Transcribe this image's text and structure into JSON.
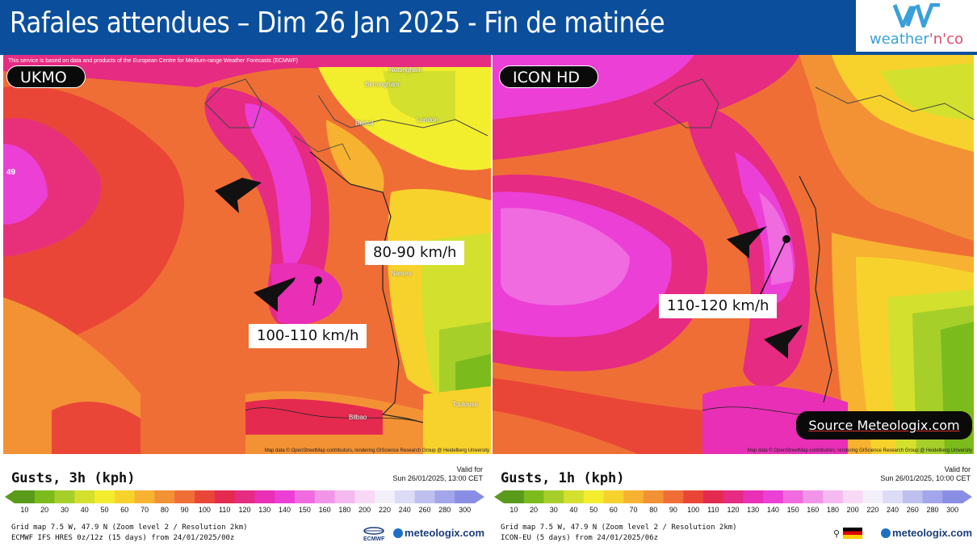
{
  "header": {
    "title": "Rafales attendues – Dim 26 Jan 2025 - Fin de matinée",
    "logo_text_a": "weather",
    "logo_text_b": "'n'co"
  },
  "maps": {
    "left": {
      "service_note": "This service is based on data and products of the European Centre for Medium-range Weather Forecasts (ECMWF)",
      "model": "UKMO",
      "side_value": "49",
      "labels": [
        "80-90 km/h",
        "100-110 km/h"
      ],
      "attribution": "Map data © OpenStreetMap contributors, rendering GIScience Research Group @ Heidelberg University",
      "cities": [
        "Nottingham",
        "Birmingham",
        "London",
        "Bristol",
        "Nantes",
        "Toulouse",
        "Bilbao"
      ]
    },
    "right": {
      "model": "ICON HD",
      "labels": [
        "110-120 km/h"
      ],
      "attribution": "Map data © OpenStreetMap contributors, rendering GIScience Research Group @ Heidelberg University"
    },
    "source": "Source Meteologix.com"
  },
  "legends": {
    "left": {
      "title": "Gusts, 3h (kph)",
      "valid_label": "Valid for",
      "valid_time": "Sun 26/01/2025, 13:00 CET",
      "grid": "Grid map 7.5 W, 47.9 N (Zoom level 2 / Resolution 2km)",
      "model_run": "ECMWF IFS HRES 0z/12z (15 days) from 24/01/2025/00z",
      "brand": "meteologix.com",
      "ecmwf_label": "ECMWF"
    },
    "right": {
      "title": "Gusts, 1h (kph)",
      "valid_label": "Valid for",
      "valid_time": "Sun 26/01/2025, 10:00 CET",
      "grid": "Grid map 7.5 W, 47.9 N (Zoom level 2 / Resolution 2km)",
      "model_run": "ICON-EU (5 days) from 24/01/2025/06z",
      "brand": "meteologix.com"
    },
    "ticks": [
      "10",
      "20",
      "30",
      "40",
      "50",
      "60",
      "70",
      "80",
      "90",
      "100",
      "110",
      "120",
      "130",
      "140",
      "150",
      "160",
      "180",
      "200",
      "220",
      "240",
      "260",
      "280",
      "300"
    ],
    "colors": [
      "#5a9a1a",
      "#7cbb1c",
      "#a7cf2a",
      "#d4e02e",
      "#f2ee2e",
      "#f8d22c",
      "#f6b230",
      "#f39234",
      "#ef6e36",
      "#ea4638",
      "#e52a4f",
      "#e52b82",
      "#e82fb6",
      "#ec3fd6",
      "#f06ae0",
      "#f294e8",
      "#f5b8ef",
      "#f9d8f6",
      "#f4f0fa",
      "#dcdcf6",
      "#bfc0f0",
      "#a3a6ea",
      "#8a8de4"
    ]
  }
}
